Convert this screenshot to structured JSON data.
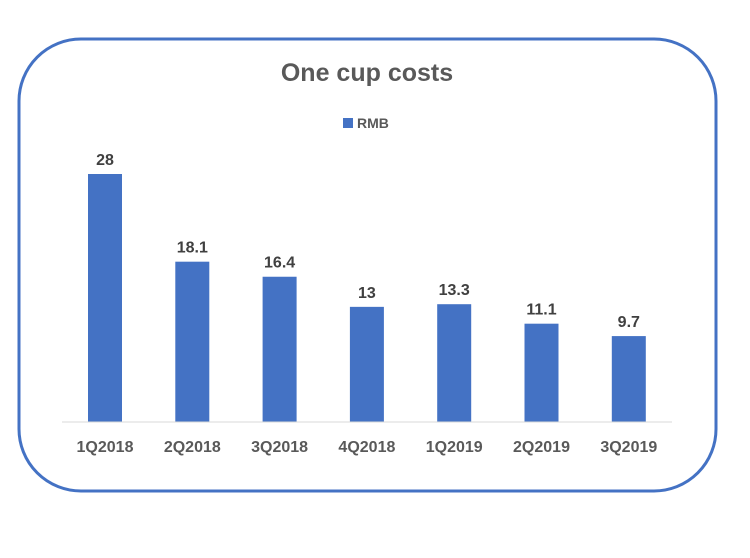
{
  "chart_data": {
    "type": "bar",
    "title": "One cup costs",
    "categories": [
      "1Q2018",
      "2Q2018",
      "3Q2018",
      "4Q2018",
      "1Q2019",
      "2Q2019",
      "3Q2019"
    ],
    "series": [
      {
        "name": "RMB",
        "values": [
          28,
          18.1,
          16.4,
          13,
          13.3,
          11.1,
          9.7
        ],
        "color": "#4472C4"
      }
    ],
    "data_labels": [
      "28",
      "18.1",
      "16.4",
      "13",
      "13.3",
      "11.1",
      "9.7"
    ],
    "xlabel": "",
    "ylabel": "",
    "ylim": [
      0,
      28
    ],
    "grid": false,
    "legend": "top-center",
    "border_color": "#4472C4"
  }
}
